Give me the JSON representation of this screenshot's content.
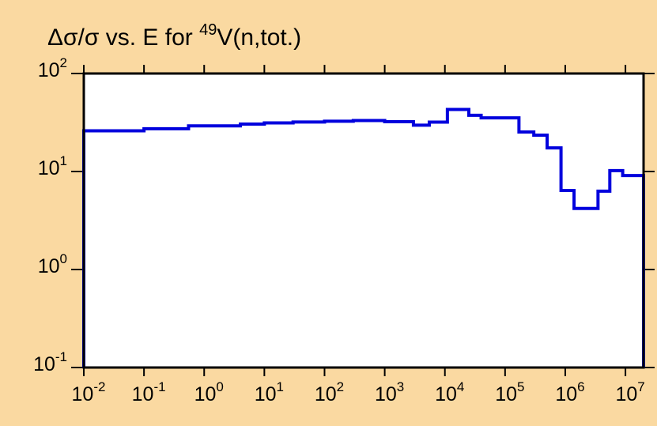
{
  "chart_data": {
    "type": "line",
    "title": {
      "prefix": "Δσ/σ vs. E for ",
      "isotope_mass": "49",
      "suffix": "V(n,tot.)"
    },
    "xlabel": "",
    "ylabel": "",
    "x_scale": "log",
    "y_scale": "log",
    "xlim": [
      0.01,
      20000000
    ],
    "ylim": [
      0.1,
      100
    ],
    "grid": false,
    "legend": "none",
    "x_ticks": [
      {
        "base": "10",
        "exp": "-2",
        "value": 0.01
      },
      {
        "base": "10",
        "exp": "-1",
        "value": 0.1
      },
      {
        "base": "10",
        "exp": "0",
        "value": 1
      },
      {
        "base": "10",
        "exp": "1",
        "value": 10
      },
      {
        "base": "10",
        "exp": "2",
        "value": 100
      },
      {
        "base": "10",
        "exp": "3",
        "value": 1000
      },
      {
        "base": "10",
        "exp": "4",
        "value": 10000
      },
      {
        "base": "10",
        "exp": "5",
        "value": 100000
      },
      {
        "base": "10",
        "exp": "6",
        "value": 1000000
      },
      {
        "base": "10",
        "exp": "7",
        "value": 10000000
      }
    ],
    "y_ticks": [
      {
        "base": "10",
        "exp": "-1",
        "value": 0.1
      },
      {
        "base": "10",
        "exp": "0",
        "value": 1
      },
      {
        "base": "10",
        "exp": "1",
        "value": 10
      },
      {
        "base": "10",
        "exp": "2",
        "value": 100
      }
    ],
    "series": [
      {
        "color": "#0000dd",
        "style": "step",
        "bins": [
          {
            "x0": 0.01,
            "x1": 0.1,
            "y": 26
          },
          {
            "x0": 0.1,
            "x1": 0.55,
            "y": 27.3
          },
          {
            "x0": 0.55,
            "x1": 4,
            "y": 29.2
          },
          {
            "x0": 4,
            "x1": 10,
            "y": 30.5
          },
          {
            "x0": 10,
            "x1": 30,
            "y": 31.3
          },
          {
            "x0": 30,
            "x1": 100,
            "y": 32
          },
          {
            "x0": 100,
            "x1": 300,
            "y": 32.6
          },
          {
            "x0": 300,
            "x1": 1000,
            "y": 33.1
          },
          {
            "x0": 1000,
            "x1": 3000,
            "y": 32.2
          },
          {
            "x0": 3000,
            "x1": 5500,
            "y": 29.7
          },
          {
            "x0": 5500,
            "x1": 11000,
            "y": 31.9
          },
          {
            "x0": 11000,
            "x1": 25000,
            "y": 43
          },
          {
            "x0": 25000,
            "x1": 40000,
            "y": 37.5
          },
          {
            "x0": 40000,
            "x1": 170000,
            "y": 35.3
          },
          {
            "x0": 170000,
            "x1": 300000,
            "y": 25.3
          },
          {
            "x0": 300000,
            "x1": 500000,
            "y": 23.5
          },
          {
            "x0": 500000,
            "x1": 850000,
            "y": 17.4
          },
          {
            "x0": 850000,
            "x1": 1400000,
            "y": 6.4
          },
          {
            "x0": 1400000,
            "x1": 3500000,
            "y": 4.2
          },
          {
            "x0": 3500000,
            "x1": 5500000,
            "y": 6.3
          },
          {
            "x0": 5500000,
            "x1": 9000000,
            "y": 10.2
          },
          {
            "x0": 9000000,
            "x1": 20000000,
            "y": 9.1
          }
        ],
        "drop_to_floor_at_ends": true
      }
    ]
  }
}
